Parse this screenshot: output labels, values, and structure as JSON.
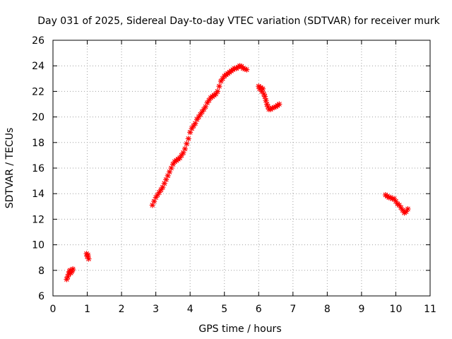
{
  "chart_data": {
    "type": "scatter",
    "title": "Day 031 of 2025, Sidereal Day-to-day VTEC variation (SDTVAR) for receiver murk",
    "xlabel": "GPS time / hours",
    "ylabel": "SDTVAR / TECUs",
    "xlim": [
      0,
      11
    ],
    "ylim": [
      6,
      26
    ],
    "xticks": [
      0,
      1,
      2,
      3,
      4,
      5,
      6,
      7,
      8,
      9,
      10,
      11
    ],
    "yticks": [
      6,
      8,
      10,
      12,
      14,
      16,
      18,
      20,
      22,
      24,
      26
    ],
    "grid": true,
    "marker": "plus-cross",
    "color": "#ff0000",
    "series": [
      {
        "name": "SDTVAR",
        "points": [
          [
            0.4,
            7.3
          ],
          [
            0.43,
            7.5
          ],
          [
            0.46,
            7.7
          ],
          [
            0.48,
            7.9
          ],
          [
            0.5,
            8.0
          ],
          [
            0.52,
            7.8
          ],
          [
            0.54,
            7.9
          ],
          [
            0.56,
            8.0
          ],
          [
            0.58,
            8.1
          ],
          [
            0.98,
            9.3
          ],
          [
            1.0,
            9.1
          ],
          [
            1.02,
            9.2
          ],
          [
            1.04,
            8.9
          ],
          [
            2.9,
            13.1
          ],
          [
            2.95,
            13.4
          ],
          [
            3.0,
            13.7
          ],
          [
            3.05,
            13.9
          ],
          [
            3.1,
            14.1
          ],
          [
            3.15,
            14.3
          ],
          [
            3.2,
            14.5
          ],
          [
            3.25,
            14.8
          ],
          [
            3.3,
            15.1
          ],
          [
            3.35,
            15.4
          ],
          [
            3.4,
            15.7
          ],
          [
            3.45,
            16.0
          ],
          [
            3.5,
            16.3
          ],
          [
            3.55,
            16.5
          ],
          [
            3.6,
            16.6
          ],
          [
            3.65,
            16.7
          ],
          [
            3.7,
            16.8
          ],
          [
            3.75,
            17.0
          ],
          [
            3.8,
            17.2
          ],
          [
            3.85,
            17.5
          ],
          [
            3.9,
            17.9
          ],
          [
            3.95,
            18.3
          ],
          [
            4.0,
            18.8
          ],
          [
            4.05,
            19.1
          ],
          [
            4.1,
            19.3
          ],
          [
            4.15,
            19.5
          ],
          [
            4.2,
            19.8
          ],
          [
            4.25,
            20.0
          ],
          [
            4.3,
            20.2
          ],
          [
            4.35,
            20.4
          ],
          [
            4.4,
            20.6
          ],
          [
            4.45,
            20.8
          ],
          [
            4.5,
            21.1
          ],
          [
            4.55,
            21.3
          ],
          [
            4.6,
            21.5
          ],
          [
            4.65,
            21.6
          ],
          [
            4.7,
            21.7
          ],
          [
            4.75,
            21.8
          ],
          [
            4.8,
            22.0
          ],
          [
            4.85,
            22.4
          ],
          [
            4.9,
            22.8
          ],
          [
            4.95,
            23.0
          ],
          [
            5.0,
            23.2
          ],
          [
            5.05,
            23.3
          ],
          [
            5.1,
            23.4
          ],
          [
            5.15,
            23.5
          ],
          [
            5.2,
            23.6
          ],
          [
            5.25,
            23.7
          ],
          [
            5.3,
            23.8
          ],
          [
            5.35,
            23.8
          ],
          [
            5.4,
            23.9
          ],
          [
            5.45,
            24.0
          ],
          [
            5.5,
            23.95
          ],
          [
            5.55,
            23.8
          ],
          [
            5.6,
            23.75
          ],
          [
            5.65,
            23.7
          ],
          [
            6.0,
            22.4
          ],
          [
            6.03,
            22.2
          ],
          [
            6.06,
            22.3
          ],
          [
            6.09,
            22.0
          ],
          [
            6.12,
            22.2
          ],
          [
            6.15,
            21.8
          ],
          [
            6.18,
            21.6
          ],
          [
            6.21,
            21.3
          ],
          [
            6.24,
            21.0
          ],
          [
            6.27,
            20.8
          ],
          [
            6.3,
            20.6
          ],
          [
            6.35,
            20.6
          ],
          [
            6.4,
            20.7
          ],
          [
            6.45,
            20.75
          ],
          [
            6.5,
            20.8
          ],
          [
            6.55,
            20.9
          ],
          [
            6.6,
            21.0
          ],
          [
            9.7,
            13.9
          ],
          [
            9.75,
            13.8
          ],
          [
            9.8,
            13.7
          ],
          [
            9.85,
            13.7
          ],
          [
            9.9,
            13.6
          ],
          [
            9.95,
            13.6
          ],
          [
            10.0,
            13.4
          ],
          [
            10.05,
            13.2
          ],
          [
            10.1,
            13.1
          ],
          [
            10.15,
            12.9
          ],
          [
            10.2,
            12.7
          ],
          [
            10.25,
            12.5
          ],
          [
            10.3,
            12.6
          ],
          [
            10.35,
            12.8
          ]
        ]
      }
    ]
  }
}
